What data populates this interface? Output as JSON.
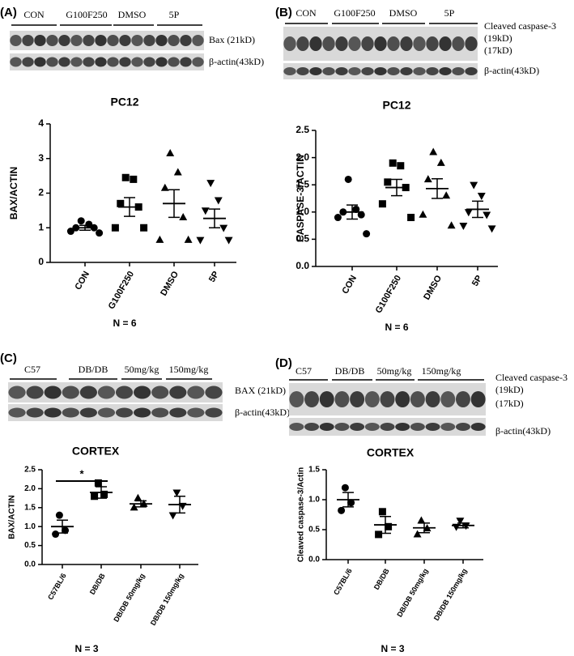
{
  "blots": [
    {
      "panel": "(A)",
      "groups": [
        "CON",
        "G100F250",
        "DMSO",
        "5P"
      ],
      "bands": [
        "Bax (21kD)",
        "β-actin(43kD)"
      ]
    },
    {
      "panel": "(B)",
      "groups": [
        "CON",
        "G100F250",
        "DMSO",
        "5P"
      ],
      "bands": [
        "Cleaved caspase-3",
        "(19kD)",
        "(17kD)",
        "β-actin(43kD)"
      ]
    },
    {
      "panel": "(C)",
      "groups": [
        "C57",
        "DB/DB",
        "50mg/kg",
        "150mg/kg"
      ],
      "bands": [
        "BAX (21kD)",
        "β-actin(43kD)"
      ]
    },
    {
      "panel": "(D)",
      "groups": [
        "C57",
        "DB/DB",
        "50mg/kg",
        "150mg/kg"
      ],
      "bands": [
        "Cleaved caspase-3",
        "(19kD)",
        "(17kD)",
        "β-actin(43kD)"
      ]
    }
  ],
  "chart_data": [
    {
      "type": "scatter",
      "title": "PC12",
      "y_label": "BAX/ACTIN",
      "note": "N = 6",
      "color": "#000000",
      "markers": [
        "circle",
        "square",
        "triangle",
        "triangle-down"
      ],
      "categories": [
        "CON",
        "G100F250",
        "DMSO",
        "5P"
      ],
      "values": [
        [
          1.2,
          1.1,
          1.0,
          1.0,
          0.9,
          0.85
        ],
        [
          2.45,
          2.4,
          1.7,
          1.6,
          1.0,
          1.0
        ],
        [
          3.15,
          2.6,
          2.15,
          1.3,
          0.65,
          0.65
        ],
        [
          2.3,
          1.8,
          1.5,
          1.0,
          0.65,
          0.65
        ]
      ],
      "mean": [
        1.0,
        1.6,
        1.7,
        1.27
      ],
      "sem": [
        0.07,
        0.27,
        0.4,
        0.27
      ],
      "ylim": [
        0,
        4
      ],
      "yticks": [
        0,
        1,
        2,
        3,
        4
      ]
    },
    {
      "type": "scatter",
      "title": "PC12",
      "y_label": "CASPASE-3/ACTIN",
      "note": "N = 6",
      "color": "#000000",
      "markers": [
        "circle",
        "square",
        "triangle",
        "triangle-down"
      ],
      "categories": [
        "CON",
        "G100F250",
        "DMSO",
        "5P"
      ],
      "values": [
        [
          1.6,
          1.05,
          1.0,
          0.95,
          0.9,
          0.6
        ],
        [
          1.9,
          1.85,
          1.55,
          1.45,
          1.15,
          0.9
        ],
        [
          2.1,
          1.9,
          1.6,
          1.3,
          0.95,
          0.75
        ],
        [
          1.5,
          1.3,
          1.0,
          0.95,
          0.75,
          0.7
        ]
      ],
      "mean": [
        1.0,
        1.45,
        1.43,
        1.05
      ],
      "sem": [
        0.13,
        0.15,
        0.18,
        0.15
      ],
      "ylim": [
        0,
        2.5
      ],
      "yticks": [
        {
          "value": 0,
          "label": "0.0"
        },
        {
          "value": 0.5,
          "label": "0.5"
        },
        {
          "value": 1,
          "label": "1.0"
        },
        {
          "value": 1.5,
          "label": "1.5"
        },
        {
          "value": 2,
          "label": "2.0"
        },
        {
          "value": 2.5,
          "label": "2.5"
        }
      ]
    },
    {
      "type": "scatter",
      "title": "CORTEX",
      "y_label": "BAX/ACTIN",
      "note": "N = 3",
      "color": "#000000",
      "markers": [
        "circle",
        "square",
        "triangle",
        "triangle-down"
      ],
      "categories": [
        "C57BL/6",
        "DB/DB",
        "DB/DB 50mg/kg",
        "DB/DB 150mg/kg"
      ],
      "values": [
        [
          1.3,
          0.9,
          0.8
        ],
        [
          2.15,
          1.85,
          1.8
        ],
        [
          1.75,
          1.6,
          1.5
        ],
        [
          1.9,
          1.55,
          1.3
        ]
      ],
      "mean": [
        1.0,
        1.9,
        1.6,
        1.58
      ],
      "sem": [
        0.17,
        0.15,
        0.08,
        0.22
      ],
      "significance": {
        "text": "*",
        "from": 0,
        "to": 1,
        "y": 2.2
      },
      "ylim": [
        0,
        2.5
      ],
      "yticks": [
        {
          "value": 0,
          "label": "0.0"
        },
        {
          "value": 0.5,
          "label": "0.5"
        },
        {
          "value": 1,
          "label": "1.0"
        },
        {
          "value": 1.5,
          "label": "1.5"
        },
        {
          "value": 2,
          "label": "2.0"
        },
        {
          "value": 2.5,
          "label": "2.5"
        }
      ]
    },
    {
      "type": "scatter",
      "title": "CORTEX",
      "y_label": "Cleaved caspase-3/Actin",
      "note": "N = 3",
      "color": "#000000",
      "markers": [
        "circle",
        "square",
        "triangle",
        "triangle-down"
      ],
      "categories": [
        "C57BL/6",
        "DB/DB",
        "DB/DB 50mg/kg",
        "DB/DB 150mg/kg"
      ],
      "values": [
        [
          1.2,
          0.95,
          0.82
        ],
        [
          0.8,
          0.55,
          0.42
        ],
        [
          0.65,
          0.52,
          0.42
        ],
        [
          0.65,
          0.57,
          0.55
        ]
      ],
      "mean": [
        1.0,
        0.58,
        0.53,
        0.57
      ],
      "sem": [
        0.12,
        0.14,
        0.08,
        0.04
      ],
      "ylim": [
        0,
        1.5
      ],
      "yticks": [
        {
          "value": 0,
          "label": "0.0"
        },
        {
          "value": 0.5,
          "label": "0.5"
        },
        {
          "value": 1,
          "label": "1.0"
        },
        {
          "value": 1.5,
          "label": "1.5"
        }
      ]
    }
  ]
}
